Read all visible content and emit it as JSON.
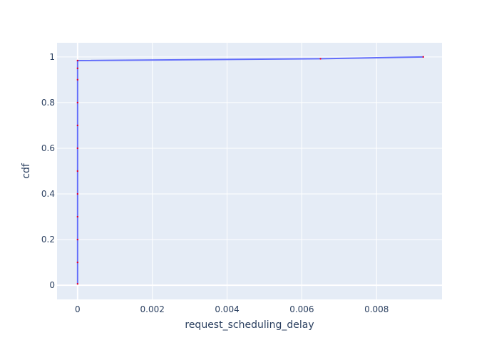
{
  "chart_data": {
    "type": "line",
    "xlabel": "request_scheduling_delay",
    "ylabel": "cdf",
    "xlim": [
      -0.00055,
      0.00975
    ],
    "ylim": [
      -0.062,
      1.062
    ],
    "x_ticks": [
      0,
      0.002,
      0.004,
      0.006,
      0.008
    ],
    "x_tick_labels": [
      "0",
      "0.002",
      "0.004",
      "0.006",
      "0.008"
    ],
    "y_ticks": [
      0,
      0.2,
      0.4,
      0.6,
      0.8,
      1
    ],
    "y_tick_labels": [
      "0",
      "0.2",
      "0.4",
      "0.6",
      "0.8",
      "1"
    ],
    "grid": true,
    "legend": "none",
    "series": [
      {
        "color": "#636efa",
        "marker_color": "#e8002a",
        "x": [
          0,
          0,
          0,
          0,
          0,
          0,
          0,
          0,
          0,
          0,
          0,
          0,
          0.0065,
          0.00925
        ],
        "y": [
          0.006,
          0.1,
          0.2,
          0.3,
          0.4,
          0.5,
          0.6,
          0.7,
          0.8,
          0.9,
          0.95,
          0.984,
          0.992,
          1.0
        ]
      }
    ]
  },
  "colors": {
    "plot_background": "#e5ecf6",
    "gridline": "#ffffff",
    "text": "#2a3f5f"
  }
}
